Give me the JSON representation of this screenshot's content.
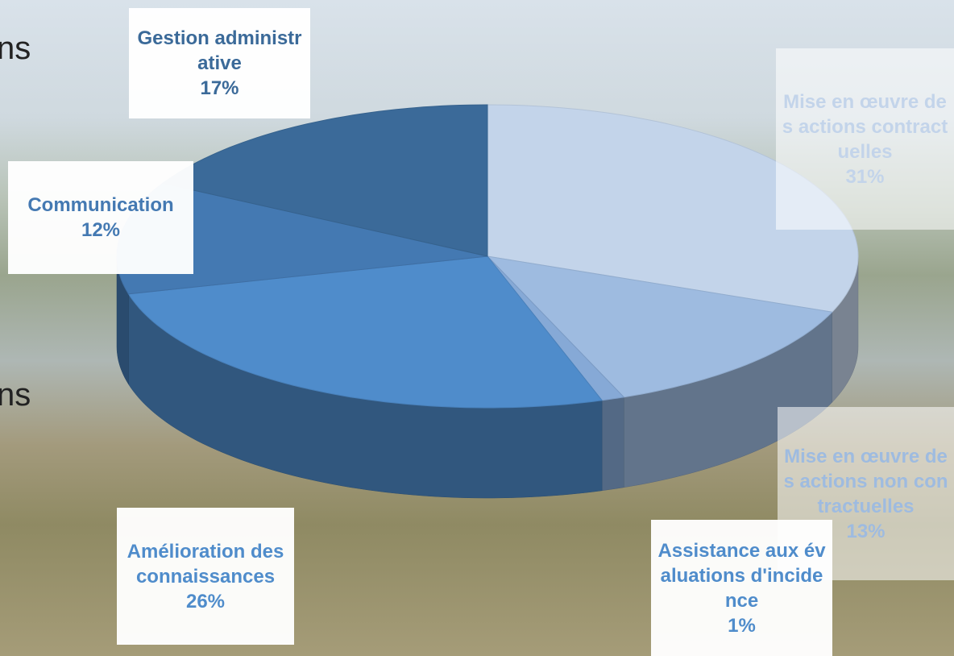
{
  "slide_text": [
    "ns",
    "ns"
  ],
  "chart_data": {
    "type": "pie3d",
    "categories": [
      "Mise en œuvre des actions contractuelles",
      "Mise en œuvre des actions non contractuelles",
      "Assistance aux évaluations d'incidence",
      "Amélioration des connaissances",
      "Communication",
      "Gestion administrative"
    ],
    "values": [
      31,
      13,
      1,
      26,
      12,
      17
    ],
    "value_labels": [
      "31%",
      "13%",
      "1%",
      "26%",
      "12%",
      "17%"
    ],
    "colors": [
      "#c3d4ea",
      "#9ebbe0",
      "#86a9d6",
      "#4f8ccb",
      "#4479b2",
      "#3b6a99"
    ]
  }
}
